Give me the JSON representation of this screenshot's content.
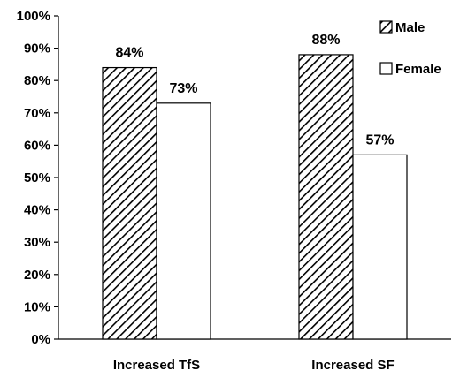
{
  "chart_data": {
    "type": "bar",
    "categories": [
      "Increased TfS",
      "Increased SF"
    ],
    "series": [
      {
        "name": "Male",
        "values": [
          84,
          88
        ],
        "labels": [
          "84%",
          "88%"
        ],
        "pattern": "hatched"
      },
      {
        "name": "Female",
        "values": [
          73,
          57
        ],
        "labels": [
          "73%",
          "57%"
        ],
        "pattern": "solid-white"
      }
    ],
    "ylim": [
      0,
      100
    ],
    "yticks": [
      "0%",
      "10%",
      "20%",
      "30%",
      "40%",
      "50%",
      "60%",
      "70%",
      "80%",
      "90%",
      "100%"
    ],
    "xlabel": "",
    "ylabel": "",
    "title": "",
    "grid": false,
    "legend_position": "top-right",
    "colors": {
      "axis": "#000000",
      "hatch": "#000000",
      "fill": "#ffffff"
    }
  }
}
